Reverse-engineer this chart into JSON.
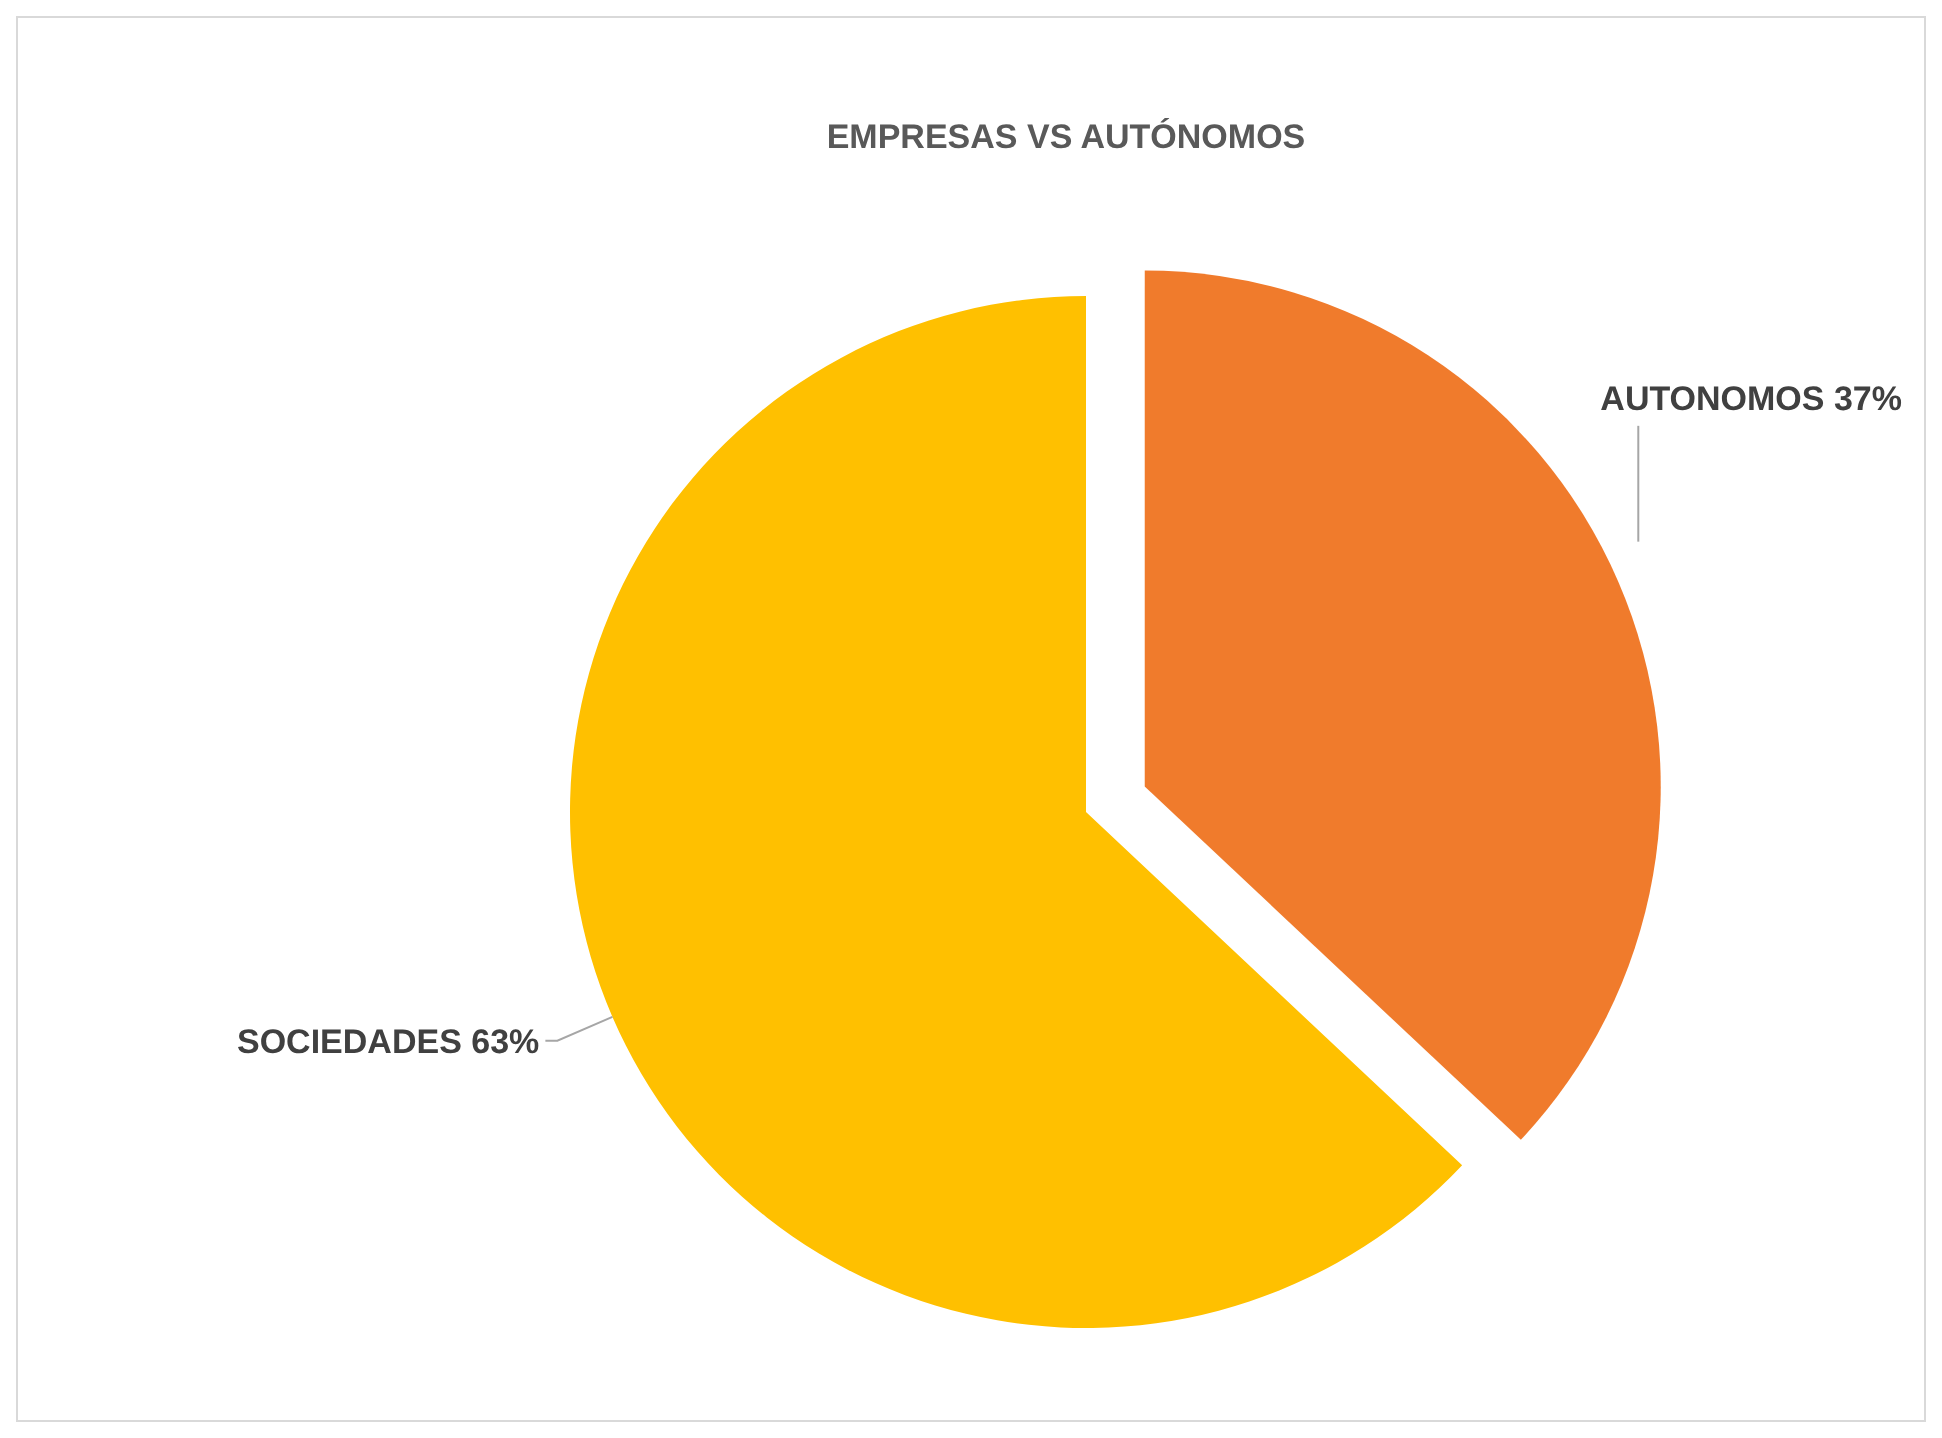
{
  "chart_data": {
    "type": "pie",
    "title": "EMPRESAS VS AUTÓNOMOS",
    "categories": [
      "AUTONOMOS",
      "SOCIEDADES"
    ],
    "values": [
      37,
      63
    ],
    "colors": [
      "#f07b2c",
      "#ffc000"
    ],
    "value_labels": [
      "37%",
      "63%"
    ]
  }
}
